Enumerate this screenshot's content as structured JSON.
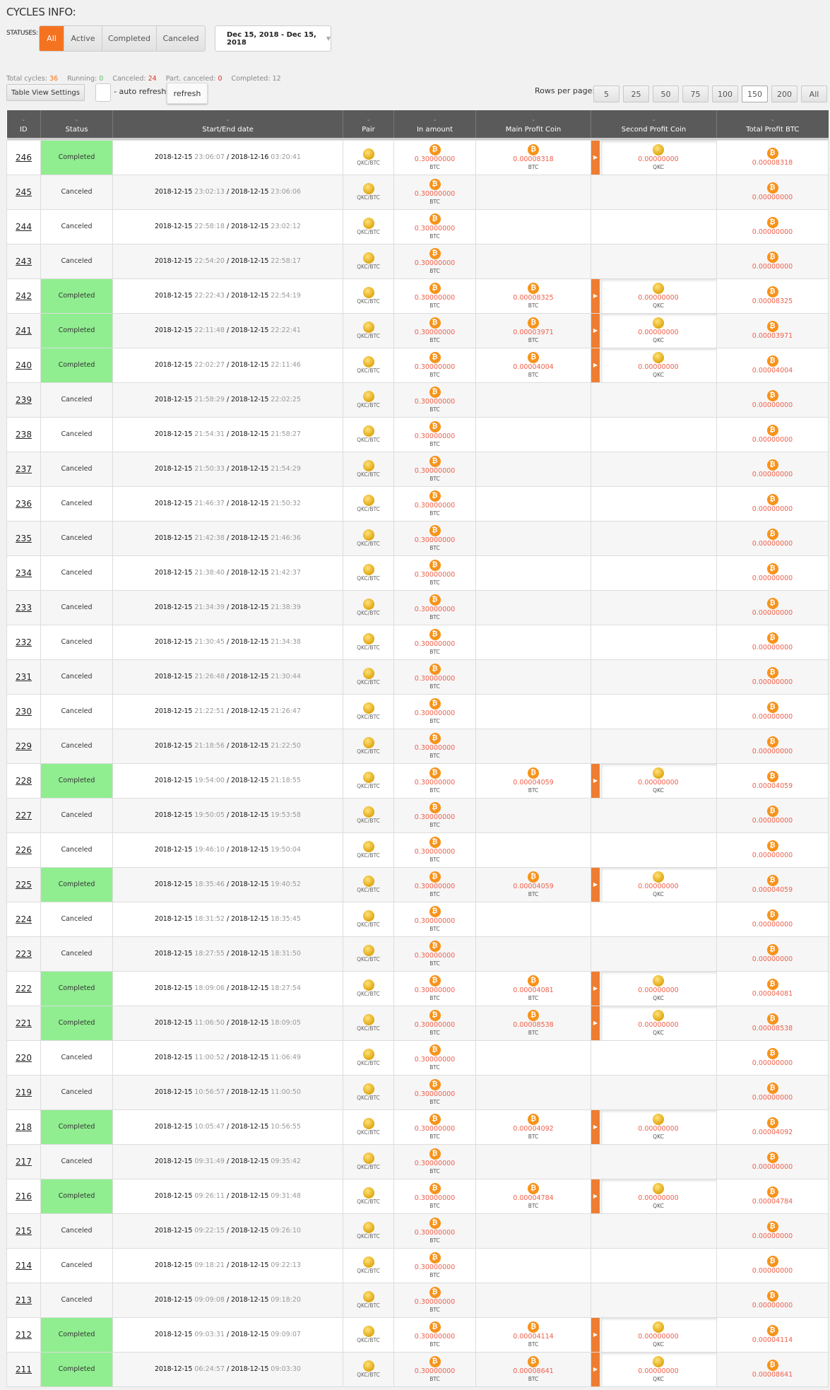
{
  "title": "CYCLES INFO:",
  "statuses": {
    "label": "STATUSES:",
    "options": [
      "All",
      "Active",
      "Completed",
      "Canceled"
    ],
    "active": "All"
  },
  "date_range": "Dec 15, 2018 - Dec 15, 2018",
  "stats": [
    {
      "label": "Total cycles:",
      "value": "36",
      "color": "#f47321"
    },
    {
      "label": "Running:",
      "value": "0",
      "color": "#5cb85c"
    },
    {
      "label": "Canceled:",
      "value": "24",
      "color": "#e0301e"
    },
    {
      "label": "Part. canceled:",
      "value": "0",
      "color": "#e0301e"
    },
    {
      "label": "Completed:",
      "value": "12",
      "color": "#888888"
    }
  ],
  "toolbar": {
    "table_view_settings": "Table View Settings",
    "auto_refresh_label": "- auto refresh",
    "auto_refresh_checked": false,
    "refresh": "refresh"
  },
  "rows_per_page": {
    "label": "Rows per page:",
    "options": [
      "5",
      "25",
      "50",
      "75",
      "100",
      "150",
      "200",
      "All"
    ],
    "active": "150"
  },
  "columns": [
    "ID",
    "Status",
    "Start/End date",
    "Pair",
    "In amount",
    "Main Profit Coin",
    "Second Profit Coin",
    "Total Profit BTC"
  ],
  "colors": {
    "accent": "#f47321",
    "completed_bg": "#90ee90",
    "header_bg": "#5a5a5a",
    "amount": "#f0604a",
    "btc": "#f7931a"
  },
  "pair": "QKC/BTC",
  "in_amount": "0.30000000",
  "in_unit": "BTC",
  "second_profit_value": "0.00000000",
  "second_profit_unit": "QKC",
  "rows": [
    {
      "id": "246",
      "status": "Completed",
      "start_date": "2018-12-15",
      "start_time": "23:06:07",
      "end_date": "2018-12-16",
      "end_time": "03:20:41",
      "main_profit": "0.00008318",
      "total": "0.00008318"
    },
    {
      "id": "245",
      "status": "Canceled",
      "start_date": "2018-12-15",
      "start_time": "23:02:13",
      "end_date": "2018-12-15",
      "end_time": "23:06:06",
      "main_profit": null,
      "total": "0.00000000"
    },
    {
      "id": "244",
      "status": "Canceled",
      "start_date": "2018-12-15",
      "start_time": "22:58:18",
      "end_date": "2018-12-15",
      "end_time": "23:02:12",
      "main_profit": null,
      "total": "0.00000000"
    },
    {
      "id": "243",
      "status": "Canceled",
      "start_date": "2018-12-15",
      "start_time": "22:54:20",
      "end_date": "2018-12-15",
      "end_time": "22:58:17",
      "main_profit": null,
      "total": "0.00000000"
    },
    {
      "id": "242",
      "status": "Completed",
      "start_date": "2018-12-15",
      "start_time": "22:22:43",
      "end_date": "2018-12-15",
      "end_time": "22:54:19",
      "main_profit": "0.00008325",
      "total": "0.00008325"
    },
    {
      "id": "241",
      "status": "Completed",
      "start_date": "2018-12-15",
      "start_time": "22:11:48",
      "end_date": "2018-12-15",
      "end_time": "22:22:41",
      "main_profit": "0.00003971",
      "total": "0.00003971"
    },
    {
      "id": "240",
      "status": "Completed",
      "start_date": "2018-12-15",
      "start_time": "22:02:27",
      "end_date": "2018-12-15",
      "end_time": "22:11:46",
      "main_profit": "0.00004004",
      "total": "0.00004004"
    },
    {
      "id": "239",
      "status": "Canceled",
      "start_date": "2018-12-15",
      "start_time": "21:58:29",
      "end_date": "2018-12-15",
      "end_time": "22:02:25",
      "main_profit": null,
      "total": "0.00000000"
    },
    {
      "id": "238",
      "status": "Canceled",
      "start_date": "2018-12-15",
      "start_time": "21:54:31",
      "end_date": "2018-12-15",
      "end_time": "21:58:27",
      "main_profit": null,
      "total": "0.00000000"
    },
    {
      "id": "237",
      "status": "Canceled",
      "start_date": "2018-12-15",
      "start_time": "21:50:33",
      "end_date": "2018-12-15",
      "end_time": "21:54:29",
      "main_profit": null,
      "total": "0.00000000"
    },
    {
      "id": "236",
      "status": "Canceled",
      "start_date": "2018-12-15",
      "start_time": "21:46:37",
      "end_date": "2018-12-15",
      "end_time": "21:50:32",
      "main_profit": null,
      "total": "0.00000000"
    },
    {
      "id": "235",
      "status": "Canceled",
      "start_date": "2018-12-15",
      "start_time": "21:42:38",
      "end_date": "2018-12-15",
      "end_time": "21:46:36",
      "main_profit": null,
      "total": "0.00000000"
    },
    {
      "id": "234",
      "status": "Canceled",
      "start_date": "2018-12-15",
      "start_time": "21:38:40",
      "end_date": "2018-12-15",
      "end_time": "21:42:37",
      "main_profit": null,
      "total": "0.00000000"
    },
    {
      "id": "233",
      "status": "Canceled",
      "start_date": "2018-12-15",
      "start_time": "21:34:39",
      "end_date": "2018-12-15",
      "end_time": "21:38:39",
      "main_profit": null,
      "total": "0.00000000"
    },
    {
      "id": "232",
      "status": "Canceled",
      "start_date": "2018-12-15",
      "start_time": "21:30:45",
      "end_date": "2018-12-15",
      "end_time": "21:34:38",
      "main_profit": null,
      "total": "0.00000000"
    },
    {
      "id": "231",
      "status": "Canceled",
      "start_date": "2018-12-15",
      "start_time": "21:26:48",
      "end_date": "2018-12-15",
      "end_time": "21:30:44",
      "main_profit": null,
      "total": "0.00000000"
    },
    {
      "id": "230",
      "status": "Canceled",
      "start_date": "2018-12-15",
      "start_time": "21:22:51",
      "end_date": "2018-12-15",
      "end_time": "21:26:47",
      "main_profit": null,
      "total": "0.00000000"
    },
    {
      "id": "229",
      "status": "Canceled",
      "start_date": "2018-12-15",
      "start_time": "21:18:56",
      "end_date": "2018-12-15",
      "end_time": "21:22:50",
      "main_profit": null,
      "total": "0.00000000"
    },
    {
      "id": "228",
      "status": "Completed",
      "start_date": "2018-12-15",
      "start_time": "19:54:00",
      "end_date": "2018-12-15",
      "end_time": "21:18:55",
      "main_profit": "0.00004059",
      "total": "0.00004059"
    },
    {
      "id": "227",
      "status": "Canceled",
      "start_date": "2018-12-15",
      "start_time": "19:50:05",
      "end_date": "2018-12-15",
      "end_time": "19:53:58",
      "main_profit": null,
      "total": "0.00000000"
    },
    {
      "id": "226",
      "status": "Canceled",
      "start_date": "2018-12-15",
      "start_time": "19:46:10",
      "end_date": "2018-12-15",
      "end_time": "19:50:04",
      "main_profit": null,
      "total": "0.00000000"
    },
    {
      "id": "225",
      "status": "Completed",
      "start_date": "2018-12-15",
      "start_time": "18:35:46",
      "end_date": "2018-12-15",
      "end_time": "19:40:52",
      "main_profit": "0.00004059",
      "total": "0.00004059"
    },
    {
      "id": "224",
      "status": "Canceled",
      "start_date": "2018-12-15",
      "start_time": "18:31:52",
      "end_date": "2018-12-15",
      "end_time": "18:35:45",
      "main_profit": null,
      "total": "0.00000000"
    },
    {
      "id": "223",
      "status": "Canceled",
      "start_date": "2018-12-15",
      "start_time": "18:27:55",
      "end_date": "2018-12-15",
      "end_time": "18:31:50",
      "main_profit": null,
      "total": "0.00000000"
    },
    {
      "id": "222",
      "status": "Completed",
      "start_date": "2018-12-15",
      "start_time": "18:09:06",
      "end_date": "2018-12-15",
      "end_time": "18:27:54",
      "main_profit": "0.00004081",
      "total": "0.00004081"
    },
    {
      "id": "221",
      "status": "Completed",
      "start_date": "2018-12-15",
      "start_time": "11:06:50",
      "end_date": "2018-12-15",
      "end_time": "18:09:05",
      "main_profit": "0.00008538",
      "total": "0.00008538"
    },
    {
      "id": "220",
      "status": "Canceled",
      "start_date": "2018-12-15",
      "start_time": "11:00:52",
      "end_date": "2018-12-15",
      "end_time": "11:06:49",
      "main_profit": null,
      "total": "0.00000000"
    },
    {
      "id": "219",
      "status": "Canceled",
      "start_date": "2018-12-15",
      "start_time": "10:56:57",
      "end_date": "2018-12-15",
      "end_time": "11:00:50",
      "main_profit": null,
      "total": "0.00000000"
    },
    {
      "id": "218",
      "status": "Completed",
      "start_date": "2018-12-15",
      "start_time": "10:05:47",
      "end_date": "2018-12-15",
      "end_time": "10:56:55",
      "main_profit": "0.00004092",
      "total": "0.00004092"
    },
    {
      "id": "217",
      "status": "Canceled",
      "start_date": "2018-12-15",
      "start_time": "09:31:49",
      "end_date": "2018-12-15",
      "end_time": "09:35:42",
      "main_profit": null,
      "total": "0.00000000"
    },
    {
      "id": "216",
      "status": "Completed",
      "start_date": "2018-12-15",
      "start_time": "09:26:11",
      "end_date": "2018-12-15",
      "end_time": "09:31:48",
      "main_profit": "0.00004784",
      "total": "0.00004784"
    },
    {
      "id": "215",
      "status": "Canceled",
      "start_date": "2018-12-15",
      "start_time": "09:22:15",
      "end_date": "2018-12-15",
      "end_time": "09:26:10",
      "main_profit": null,
      "total": "0.00000000"
    },
    {
      "id": "214",
      "status": "Canceled",
      "start_date": "2018-12-15",
      "start_time": "09:18:21",
      "end_date": "2018-12-15",
      "end_time": "09:22:13",
      "main_profit": null,
      "total": "0.00000000"
    },
    {
      "id": "213",
      "status": "Canceled",
      "start_date": "2018-12-15",
      "start_time": "09:09:08",
      "end_date": "2018-12-15",
      "end_time": "09:18:20",
      "main_profit": null,
      "total": "0.00000000"
    },
    {
      "id": "212",
      "status": "Completed",
      "start_date": "2018-12-15",
      "start_time": "09:03:31",
      "end_date": "2018-12-15",
      "end_time": "09:09:07",
      "main_profit": "0.00004114",
      "total": "0.00004114"
    },
    {
      "id": "211",
      "status": "Completed",
      "start_date": "2018-12-15",
      "start_time": "06:24:57",
      "end_date": "2018-12-15",
      "end_time": "09:03:30",
      "main_profit": "0.00008641",
      "total": "0.00008641"
    }
  ]
}
